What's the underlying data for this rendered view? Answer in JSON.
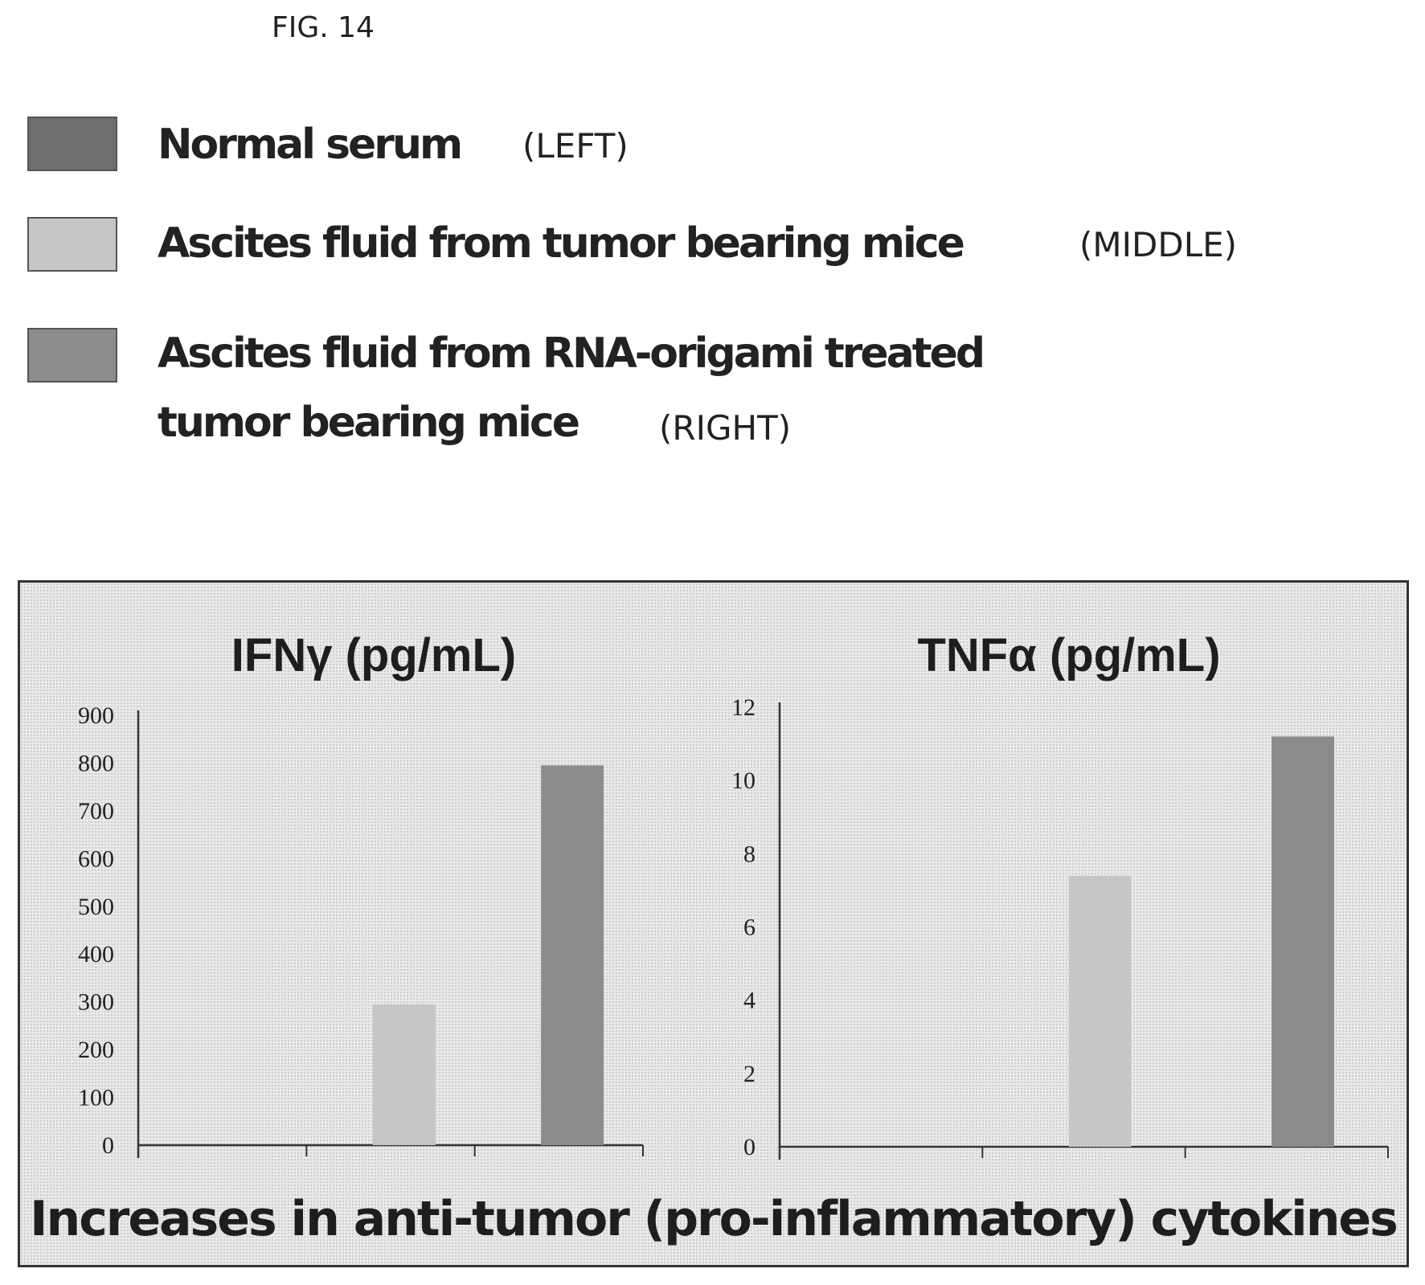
{
  "figure_label": "FIG. 14",
  "legend": [
    {
      "text": "Normal serum",
      "position": "(LEFT)",
      "color": "#6e6e6e"
    },
    {
      "text": "Ascites fluid from tumor bearing mice",
      "position": "(MIDDLE)",
      "color": "#c6c6c6"
    },
    {
      "text_lines": [
        "Ascites fluid from RNA-origami treated",
        "tumor bearing mice"
      ],
      "position": "(RIGHT)",
      "color": "#8c8c8c"
    }
  ],
  "footer_caption": "Increases in anti-tumor (pro-inflammatory) cytokines",
  "chart_data": [
    {
      "type": "bar",
      "title": "IFNγ (pg/mL)",
      "categories": [
        "",
        "",
        ""
      ],
      "series": [
        {
          "name": "Normal serum",
          "values": [
            0,
            null,
            null
          ]
        },
        {
          "name": "Ascites fluid from tumor bearing mice",
          "values": [
            null,
            295,
            null
          ]
        },
        {
          "name": "Ascites fluid from RNA-origami treated tumor bearing mice",
          "values": [
            null,
            null,
            795
          ]
        }
      ],
      "values": [
        0,
        295,
        795
      ],
      "colors": [
        "#6e6e6e",
        "#c6c6c6",
        "#8c8c8c"
      ],
      "ylim": [
        0,
        900
      ],
      "yticks": [
        "0",
        "100",
        "200",
        "300",
        "400",
        "500",
        "600",
        "700",
        "800",
        "900"
      ],
      "grid": false,
      "legend": "top"
    },
    {
      "type": "bar",
      "title": "TNFα (pg/mL)",
      "categories": [
        "",
        "",
        ""
      ],
      "series": [
        {
          "name": "Normal serum",
          "values": [
            0,
            null,
            null
          ]
        },
        {
          "name": "Ascites fluid from tumor bearing mice",
          "values": [
            null,
            7.4,
            null
          ]
        },
        {
          "name": "Ascites fluid from RNA-origami treated tumor bearing mice",
          "values": [
            null,
            null,
            11.2
          ]
        }
      ],
      "values": [
        0,
        7.4,
        11.2
      ],
      "colors": [
        "#6e6e6e",
        "#c6c6c6",
        "#8c8c8c"
      ],
      "ylim": [
        0,
        12
      ],
      "yticks": [
        "0",
        "2",
        "4",
        "6",
        "8",
        "10",
        "12"
      ],
      "grid": false,
      "legend": "top"
    }
  ]
}
